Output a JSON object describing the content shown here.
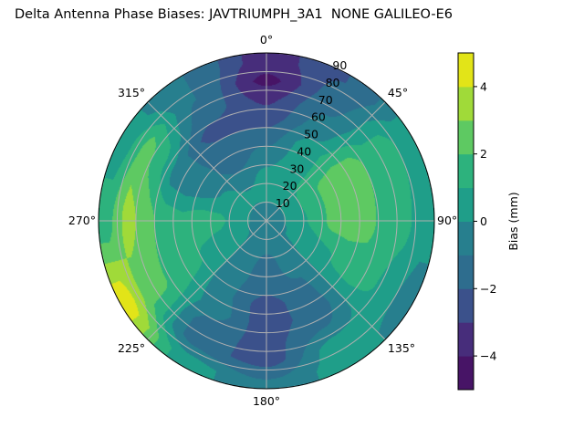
{
  "chart_data": {
    "type": "heatmap",
    "subtype": "polar-contourf",
    "title": "Delta Antenna Phase Biases: JAVTRIUMPH_3A1  NONE GALILEO-E6",
    "theta_direction": "clockwise",
    "theta_zero": "north",
    "theta_ticks": [
      "0°",
      "45°",
      "90°",
      "135°",
      "180°",
      "225°",
      "270°",
      "315°"
    ],
    "theta_tick_values": [
      0,
      45,
      90,
      135,
      180,
      225,
      270,
      315
    ],
    "r_ticks": [
      "10",
      "20",
      "30",
      "40",
      "50",
      "60",
      "70",
      "80",
      "90"
    ],
    "r_tick_values": [
      10,
      20,
      30,
      40,
      50,
      60,
      70,
      80,
      90
    ],
    "rlim": [
      0,
      90
    ],
    "grid": true,
    "azimuth_deg": [
      0,
      30,
      60,
      90,
      120,
      150,
      180,
      210,
      240,
      270,
      300,
      330
    ],
    "radius_deg": [
      5,
      15,
      25,
      35,
      45,
      55,
      65,
      75,
      85
    ],
    "values_mm": [
      [
        -0.5,
        0.5,
        0.3,
        -0.5,
        -1.5,
        -2.5,
        -3.2,
        -4.3,
        -3.5
      ],
      [
        -0.4,
        0.5,
        0.8,
        0.5,
        0.5,
        -0.5,
        -1.0,
        -1.5,
        -2.0
      ],
      [
        -0.4,
        0.5,
        1.5,
        2.2,
        2.5,
        2.5,
        1.5,
        1.5,
        0.5
      ],
      [
        -0.5,
        0.5,
        1.2,
        2.3,
        2.6,
        2.3,
        1.5,
        1.2,
        0.5
      ],
      [
        -0.5,
        0.2,
        0.5,
        0.8,
        1.2,
        1.5,
        1.2,
        0.5,
        -0.5
      ],
      [
        -0.5,
        -0.8,
        -0.5,
        -1.0,
        -1.2,
        -1.5,
        -1.0,
        0.5,
        0.5
      ],
      [
        -0.5,
        -0.8,
        -1.5,
        -1.5,
        -2.5,
        -2.5,
        -2.3,
        -2.5,
        -1.0
      ],
      [
        -0.5,
        -0.5,
        -0.5,
        -0.8,
        -0.8,
        -0.5,
        -1.5,
        -1.5,
        0.5
      ],
      [
        -0.4,
        0.3,
        0.5,
        0.8,
        1.2,
        1.5,
        2.2,
        2.5,
        4.5
      ],
      [
        -0.3,
        0.5,
        1.2,
        1.5,
        1.2,
        1.5,
        2.5,
        3.5,
        1.5
      ],
      [
        -0.4,
        0.5,
        0.2,
        -0.5,
        -0.8,
        -0.5,
        1.5,
        2.5,
        0.5
      ],
      [
        -0.4,
        0.3,
        -0.5,
        -1.5,
        -1.5,
        -2.5,
        -1.5,
        -1.0,
        -1.0
      ]
    ],
    "colorbar": {
      "label": "Bias (mm)",
      "levels": [
        -5,
        -4,
        -3,
        -2,
        -1,
        0,
        1,
        2,
        3,
        4,
        5
      ],
      "tick_values": [
        -4,
        -2,
        0,
        2,
        4
      ],
      "tick_labels": [
        "−4",
        "−2",
        "0",
        "2",
        "4"
      ],
      "colors": [
        "#471466",
        "#472d7b",
        "#3b518b",
        "#2e6d8e",
        "#277f8e",
        "#1f9e89",
        "#2db27d",
        "#5ec962",
        "#a0da39",
        "#e2e418"
      ]
    }
  }
}
